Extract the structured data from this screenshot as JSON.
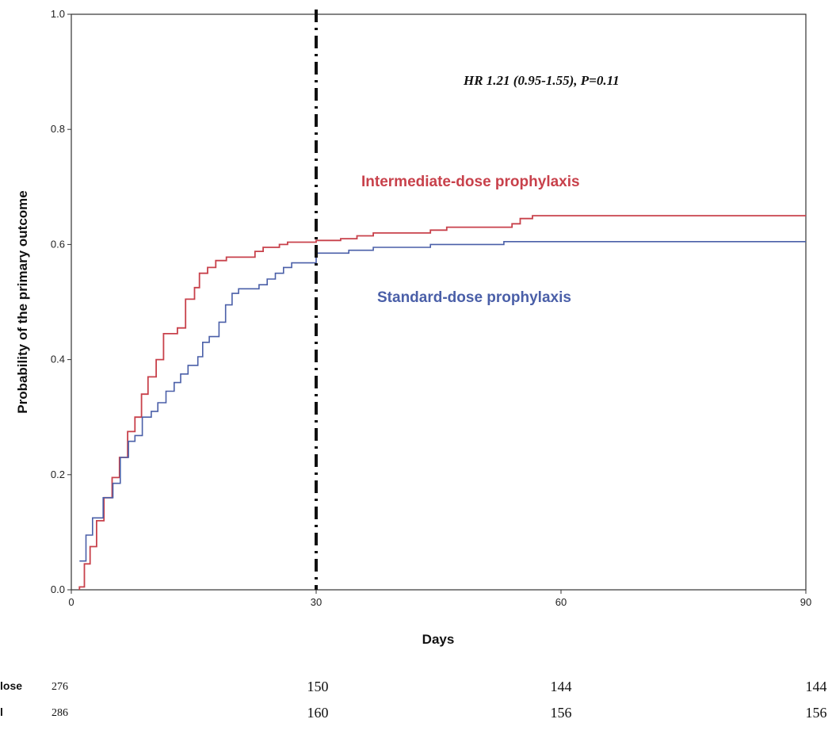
{
  "chart_data": {
    "type": "line",
    "title": "",
    "xlabel": "Days",
    "ylabel": "Probability of the primary outcome",
    "xlim": [
      0,
      90
    ],
    "ylim": [
      0,
      1.0
    ],
    "x_ticks": [
      0,
      30,
      60,
      90
    ],
    "x_tick_labels": [
      "0",
      "30",
      "60",
      "90"
    ],
    "y_ticks": [
      0,
      0.2,
      0.4,
      0.6,
      0.8,
      1.0
    ],
    "y_tick_labels": [
      "0.0",
      "0.2",
      "0.4",
      "0.6",
      "0.8",
      "1.0"
    ],
    "grid": false,
    "reference_line_x": 30,
    "annotation": "HR 1.21 (0.95-1.55), P=0.11",
    "series": [
      {
        "name": "Intermediate-dose prophylaxis",
        "color": "#c8414b",
        "step_points": [
          [
            1,
            0
          ],
          [
            1,
            0.005
          ],
          [
            1.6,
            0.005
          ],
          [
            1.6,
            0.045
          ],
          [
            2.3,
            0.045
          ],
          [
            2.3,
            0.075
          ],
          [
            3.1,
            0.075
          ],
          [
            3.1,
            0.12
          ],
          [
            4.0,
            0.12
          ],
          [
            4.0,
            0.16
          ],
          [
            5.0,
            0.16
          ],
          [
            5.0,
            0.195
          ],
          [
            5.9,
            0.195
          ],
          [
            5.9,
            0.23
          ],
          [
            6.9,
            0.23
          ],
          [
            6.9,
            0.275
          ],
          [
            7.8,
            0.275
          ],
          [
            7.8,
            0.3
          ],
          [
            8.6,
            0.3
          ],
          [
            8.6,
            0.34
          ],
          [
            9.4,
            0.34
          ],
          [
            9.4,
            0.37
          ],
          [
            10.4,
            0.37
          ],
          [
            10.4,
            0.4
          ],
          [
            11.3,
            0.4
          ],
          [
            11.3,
            0.445
          ],
          [
            13.0,
            0.445
          ],
          [
            13.0,
            0.455
          ],
          [
            14.0,
            0.455
          ],
          [
            14.0,
            0.505
          ],
          [
            15.1,
            0.505
          ],
          [
            15.1,
            0.525
          ],
          [
            15.7,
            0.525
          ],
          [
            15.7,
            0.55
          ],
          [
            16.7,
            0.55
          ],
          [
            16.7,
            0.56
          ],
          [
            17.7,
            0.56
          ],
          [
            17.7,
            0.572
          ],
          [
            19.0,
            0.572
          ],
          [
            19.0,
            0.578
          ],
          [
            22.5,
            0.578
          ],
          [
            22.5,
            0.588
          ],
          [
            23.5,
            0.588
          ],
          [
            23.5,
            0.595
          ],
          [
            25.5,
            0.595
          ],
          [
            25.5,
            0.6
          ],
          [
            26.5,
            0.6
          ],
          [
            26.5,
            0.604
          ],
          [
            30,
            0.604
          ],
          [
            30,
            0.607
          ],
          [
            33,
            0.607
          ],
          [
            33,
            0.61
          ],
          [
            35,
            0.61
          ],
          [
            35,
            0.615
          ],
          [
            37,
            0.615
          ],
          [
            37,
            0.62
          ],
          [
            44,
            0.62
          ],
          [
            44,
            0.625
          ],
          [
            46,
            0.625
          ],
          [
            46,
            0.63
          ],
          [
            54,
            0.63
          ],
          [
            54,
            0.636
          ],
          [
            55,
            0.636
          ],
          [
            55,
            0.645
          ],
          [
            56.5,
            0.645
          ],
          [
            56.5,
            0.65
          ],
          [
            90,
            0.65
          ]
        ]
      },
      {
        "name": "Standard-dose prophylaxis",
        "color": "#4a5fa8",
        "step_points": [
          [
            1,
            0.05
          ],
          [
            1.8,
            0.05
          ],
          [
            1.8,
            0.095
          ],
          [
            2.6,
            0.095
          ],
          [
            2.6,
            0.125
          ],
          [
            3.9,
            0.125
          ],
          [
            3.9,
            0.16
          ],
          [
            5.1,
            0.16
          ],
          [
            5.1,
            0.185
          ],
          [
            6.0,
            0.185
          ],
          [
            6.0,
            0.23
          ],
          [
            7.0,
            0.23
          ],
          [
            7.0,
            0.258
          ],
          [
            7.8,
            0.258
          ],
          [
            7.8,
            0.268
          ],
          [
            8.7,
            0.268
          ],
          [
            8.7,
            0.3
          ],
          [
            9.8,
            0.3
          ],
          [
            9.8,
            0.31
          ],
          [
            10.6,
            0.31
          ],
          [
            10.6,
            0.325
          ],
          [
            11.6,
            0.325
          ],
          [
            11.6,
            0.345
          ],
          [
            12.6,
            0.345
          ],
          [
            12.6,
            0.36
          ],
          [
            13.4,
            0.36
          ],
          [
            13.4,
            0.375
          ],
          [
            14.3,
            0.375
          ],
          [
            14.3,
            0.39
          ],
          [
            15.5,
            0.39
          ],
          [
            15.5,
            0.405
          ],
          [
            16.1,
            0.405
          ],
          [
            16.1,
            0.43
          ],
          [
            16.9,
            0.43
          ],
          [
            16.9,
            0.44
          ],
          [
            18.1,
            0.44
          ],
          [
            18.1,
            0.465
          ],
          [
            18.9,
            0.465
          ],
          [
            18.9,
            0.495
          ],
          [
            19.7,
            0.495
          ],
          [
            19.7,
            0.515
          ],
          [
            20.5,
            0.515
          ],
          [
            20.5,
            0.523
          ],
          [
            23.0,
            0.523
          ],
          [
            23.0,
            0.53
          ],
          [
            24.0,
            0.53
          ],
          [
            24.0,
            0.54
          ],
          [
            25.0,
            0.54
          ],
          [
            25.0,
            0.55
          ],
          [
            26.0,
            0.55
          ],
          [
            26.0,
            0.56
          ],
          [
            27.0,
            0.56
          ],
          [
            27.0,
            0.568
          ],
          [
            30,
            0.568
          ],
          [
            30,
            0.585
          ],
          [
            34,
            0.585
          ],
          [
            34,
            0.59
          ],
          [
            37,
            0.59
          ],
          [
            37,
            0.595
          ],
          [
            44,
            0.595
          ],
          [
            44,
            0.6
          ],
          [
            53,
            0.6
          ],
          [
            53,
            0.605
          ],
          [
            90,
            0.605
          ]
        ]
      }
    ],
    "risk_table": {
      "rows": [
        {
          "label": "lose",
          "values": [
            "276",
            "150",
            "144",
            "144"
          ]
        },
        {
          "label": "l",
          "values": [
            "286",
            "160",
            "156",
            "156"
          ]
        }
      ]
    }
  }
}
